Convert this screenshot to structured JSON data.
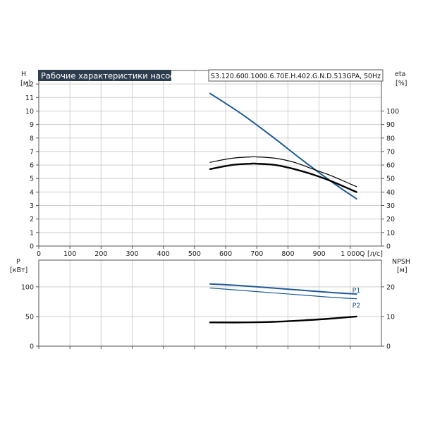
{
  "chart_data": [
    {
      "type": "line",
      "title": "Рабочие характеристики насоса",
      "subtitle": "S3.120.600.1000.6.70E.H.402.G.N.D.513GPA, 50Hz",
      "left_axis": {
        "label": "H",
        "unit": "[м]",
        "range": [
          0,
          13
        ],
        "ticks": [
          0,
          1,
          2,
          3,
          4,
          5,
          6,
          7,
          8,
          9,
          10,
          11,
          12
        ]
      },
      "right_axis": {
        "label": "eta",
        "unit": "[%]",
        "range": [
          0,
          130
        ],
        "ticks": [
          0,
          10,
          20,
          30,
          40,
          50,
          60,
          70,
          80,
          90,
          100
        ]
      },
      "x_axis": {
        "label": "Q",
        "unit": "[л/с]",
        "range": [
          0,
          1100
        ],
        "ticks": [
          0,
          100,
          200,
          300,
          400,
          500,
          600,
          700,
          800,
          900,
          1000
        ],
        "tick_labels": [
          "0",
          "100",
          "200",
          "300",
          "400",
          "500",
          "600",
          "700",
          "800",
          "900",
          "1 000"
        ]
      },
      "grid": true,
      "series": [
        {
          "axis": "left",
          "color": "#1f5a96",
          "x": [
            550,
            650,
            750,
            850,
            950,
            1020
          ],
          "y": [
            11.3,
            9.8,
            8.1,
            6.3,
            4.6,
            3.5
          ]
        },
        {
          "axis": "right",
          "color": "#000000",
          "x": [
            550,
            620,
            680,
            700,
            760,
            820,
            880,
            940,
            1000,
            1020
          ],
          "y": [
            62,
            65,
            66,
            66,
            65,
            62,
            57,
            52,
            46,
            44
          ]
        },
        {
          "axis": "right",
          "color": "#000000",
          "x": [
            550,
            620,
            680,
            700,
            760,
            820,
            880,
            940,
            1000,
            1020
          ],
          "y": [
            57,
            60,
            61,
            61,
            60,
            57,
            53,
            48,
            42,
            40
          ]
        }
      ]
    },
    {
      "type": "line",
      "left_axis": {
        "label": "P",
        "unit": "[кВт]",
        "range": [
          0,
          145
        ],
        "ticks": [
          0,
          50,
          100
        ]
      },
      "right_axis": {
        "label": "NPSH",
        "unit": "[м]",
        "range": [
          0,
          29
        ],
        "ticks": [
          0,
          10,
          20
        ]
      },
      "x_axis": {
        "range": [
          0,
          1100
        ],
        "ticks": [
          0,
          100,
          200,
          300,
          400,
          500,
          600,
          700,
          800,
          900,
          1000
        ]
      },
      "grid": true,
      "series": [
        {
          "name": "P1",
          "axis": "left",
          "color": "#1f5a96",
          "x": [
            550,
            650,
            750,
            850,
            950,
            1020
          ],
          "y": [
            105,
            102,
            98,
            94,
            90,
            88
          ]
        },
        {
          "name": "P2",
          "axis": "left",
          "color": "#1f5a96",
          "x": [
            550,
            650,
            750,
            850,
            950,
            1020
          ],
          "y": [
            98,
            94,
            90,
            86,
            82,
            80
          ]
        },
        {
          "axis": "right",
          "color": "#000000",
          "x": [
            550,
            650,
            750,
            850,
            950,
            1020
          ],
          "y": [
            8.0,
            8.0,
            8.2,
            8.7,
            9.4,
            10.0
          ]
        }
      ]
    }
  ]
}
